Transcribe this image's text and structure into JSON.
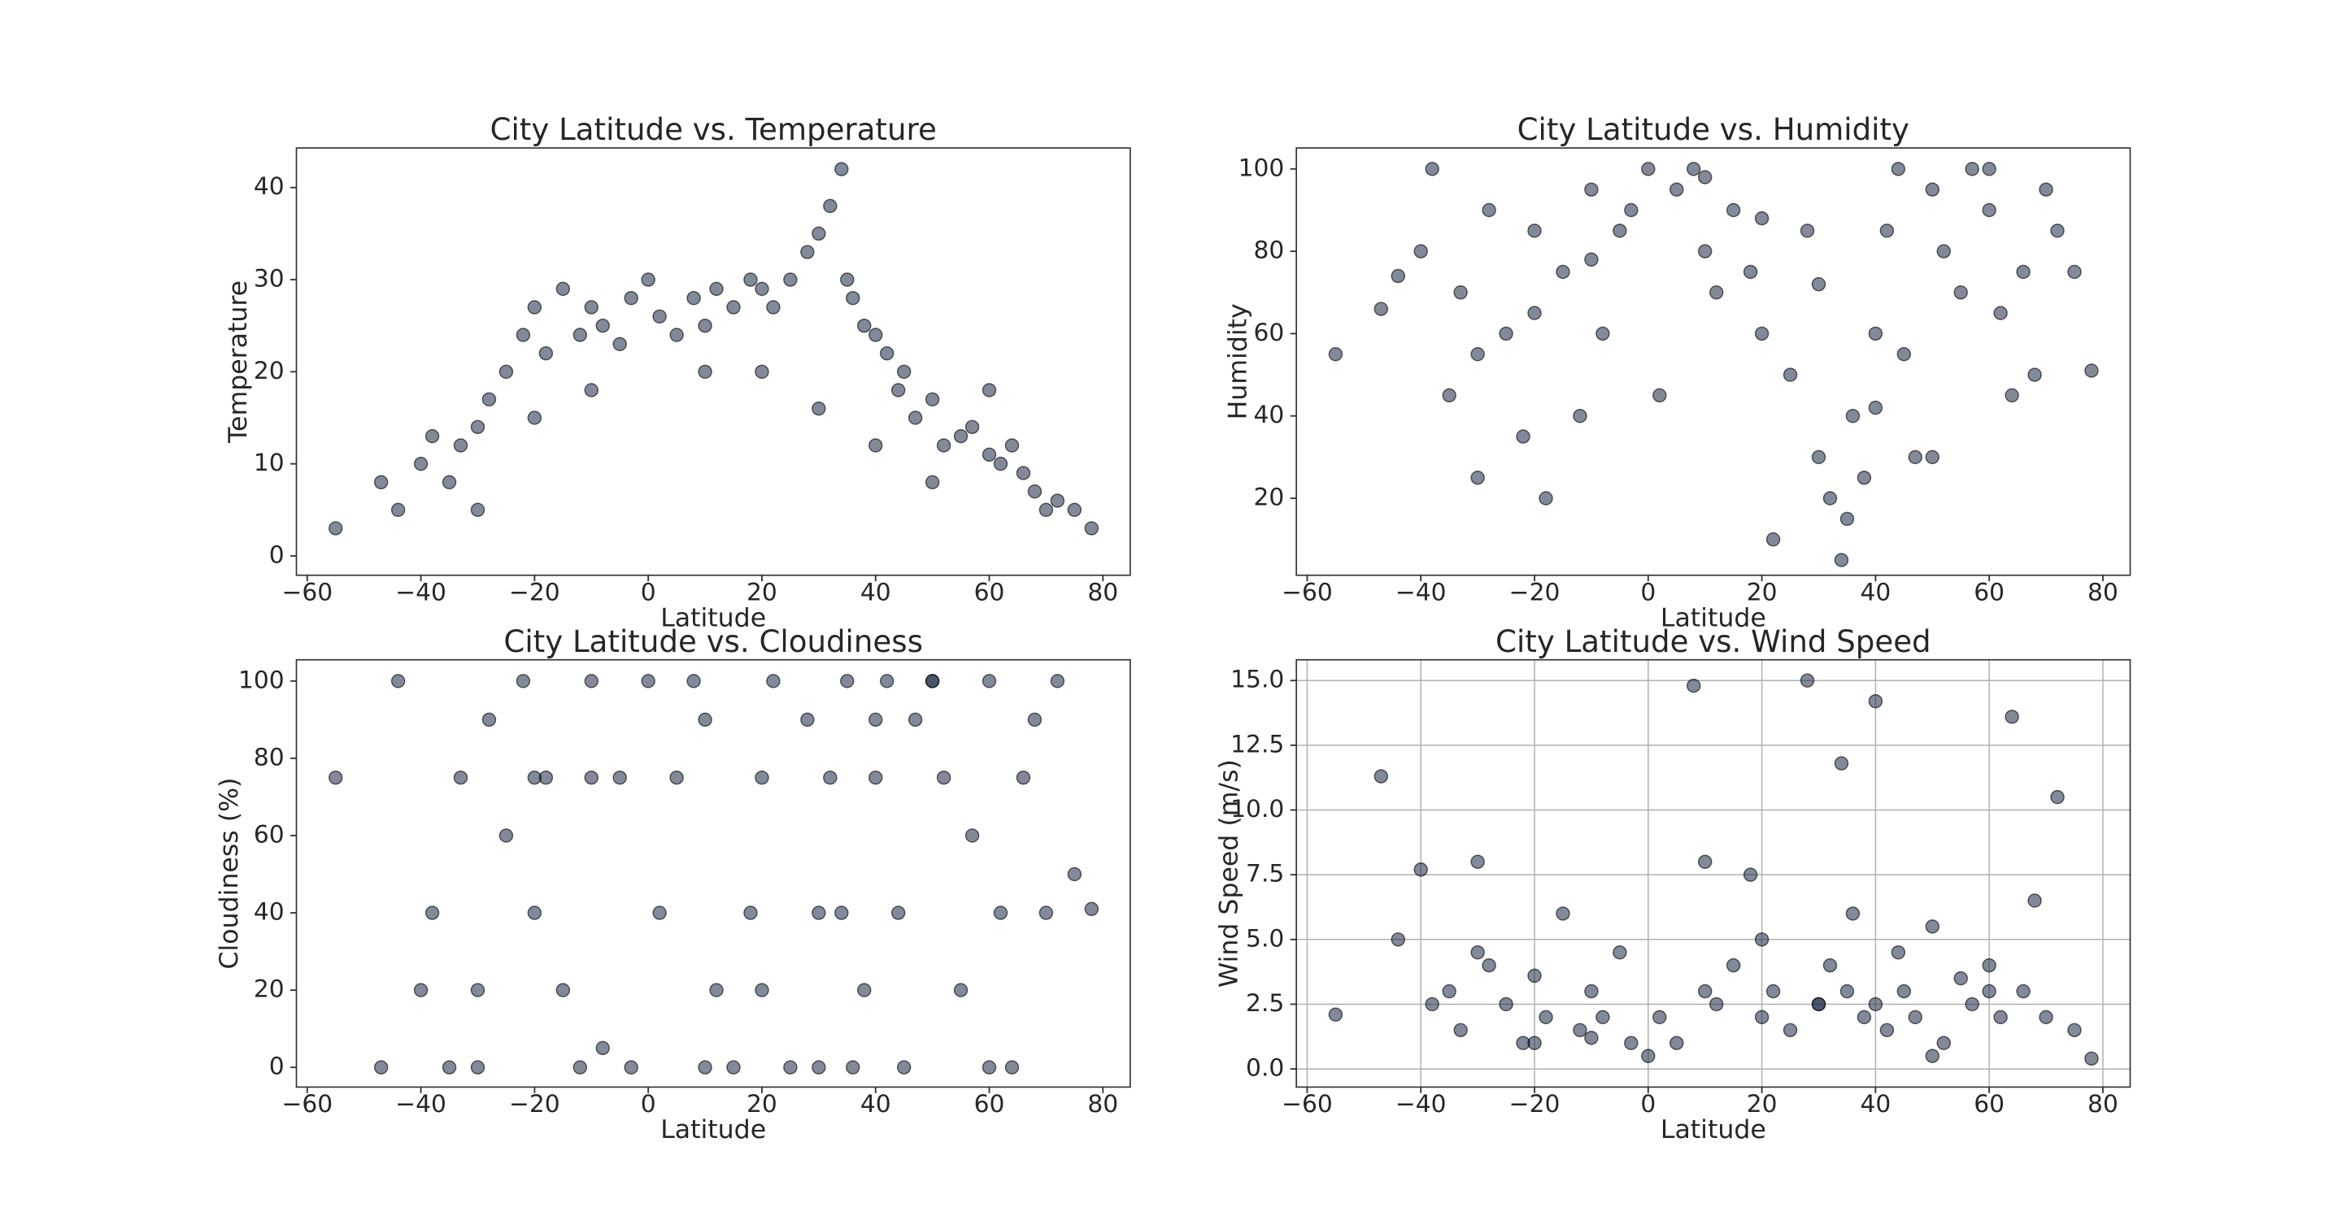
{
  "chart_data": [
    {
      "type": "scatter",
      "title": "City Latitude vs. Temperature",
      "x_label": "Latitude",
      "y_label": "Temperature",
      "color": "#1b2a47",
      "x": [
        -55,
        -47,
        -44,
        -40,
        -38,
        -35,
        -33,
        -30,
        -28,
        -25,
        -22,
        -20,
        -18,
        -15,
        -12,
        -10,
        -8,
        -5,
        -3,
        0,
        2,
        5,
        8,
        10,
        12,
        15,
        18,
        20,
        22,
        25,
        28,
        30,
        32,
        34,
        35,
        36,
        38,
        40,
        42,
        44,
        45,
        47,
        50,
        52,
        55,
        57,
        60,
        62,
        64,
        66,
        68,
        70,
        72,
        75,
        78,
        -30,
        -20,
        10,
        30,
        50,
        60,
        -10,
        20,
        40
      ],
      "y": [
        3,
        8,
        5,
        10,
        13,
        8,
        12,
        5,
        17,
        20,
        24,
        27,
        22,
        29,
        24,
        27,
        25,
        23,
        28,
        30,
        26,
        24,
        28,
        25,
        29,
        27,
        30,
        29,
        27,
        30,
        33,
        35,
        38,
        42,
        30,
        28,
        25,
        24,
        22,
        18,
        20,
        15,
        17,
        12,
        13,
        14,
        11,
        10,
        12,
        9,
        7,
        5,
        6,
        5,
        3,
        14,
        15,
        20,
        16,
        8,
        18,
        18,
        20,
        12
      ],
      "xlim": [
        -61.9,
        84.8
      ],
      "ylim": [
        -2.1,
        44.3
      ],
      "xticks": [
        {
          "value": -60,
          "label": "−60"
        },
        {
          "value": -40,
          "label": "−40"
        },
        {
          "value": -20,
          "label": "−20"
        },
        0,
        20,
        40,
        60,
        80
      ],
      "yticks": [
        0,
        10,
        20,
        30,
        40
      ],
      "grid": false
    },
    {
      "type": "scatter",
      "title": "City Latitude vs. Humidity",
      "x_label": "Latitude",
      "y_label": "Humidity",
      "color": "#1b2a47",
      "x": [
        -55,
        -47,
        -44,
        -40,
        -38,
        -35,
        -33,
        -30,
        -28,
        -25,
        -22,
        -20,
        -18,
        -15,
        -12,
        -10,
        -8,
        -5,
        -3,
        0,
        2,
        5,
        8,
        10,
        12,
        15,
        18,
        20,
        22,
        25,
        28,
        30,
        32,
        34,
        35,
        36,
        38,
        40,
        42,
        44,
        45,
        47,
        50,
        52,
        55,
        57,
        60,
        62,
        64,
        66,
        68,
        70,
        72,
        75,
        78,
        -30,
        -20,
        10,
        30,
        50,
        60,
        -10,
        20,
        40
      ],
      "y": [
        55,
        66,
        74,
        80,
        100,
        45,
        70,
        25,
        90,
        60,
        35,
        85,
        20,
        75,
        40,
        95,
        60,
        85,
        90,
        100,
        45,
        95,
        100,
        80,
        70,
        90,
        75,
        60,
        10,
        50,
        85,
        30,
        20,
        5,
        15,
        40,
        25,
        60,
        85,
        100,
        55,
        30,
        95,
        80,
        70,
        100,
        90,
        65,
        45,
        75,
        50,
        95,
        85,
        75,
        51,
        55,
        65,
        98,
        72,
        30,
        100,
        78,
        88,
        42
      ],
      "xlim": [
        -61.9,
        84.8
      ],
      "ylim": [
        1.3,
        105.1
      ],
      "xticks": [
        {
          "value": -60,
          "label": "−60"
        },
        {
          "value": -40,
          "label": "−40"
        },
        {
          "value": -20,
          "label": "−20"
        },
        0,
        20,
        40,
        60,
        80
      ],
      "yticks": [
        20,
        40,
        60,
        80,
        100
      ],
      "grid": false
    },
    {
      "type": "scatter",
      "title": "City Latitude vs. Cloudiness",
      "x_label": "Latitude",
      "y_label": "Cloudiness (%)",
      "color": "#1b2a47",
      "x": [
        -55,
        -47,
        -44,
        -40,
        -38,
        -35,
        -33,
        -30,
        -28,
        -25,
        -22,
        -20,
        -18,
        -15,
        -12,
        -10,
        -8,
        -5,
        -3,
        0,
        2,
        5,
        8,
        10,
        12,
        15,
        18,
        20,
        22,
        25,
        28,
        30,
        32,
        34,
        35,
        36,
        38,
        40,
        42,
        44,
        45,
        47,
        50,
        52,
        55,
        57,
        60,
        62,
        64,
        66,
        68,
        70,
        72,
        75,
        78,
        -30,
        -20,
        10,
        30,
        50,
        60,
        -10,
        20,
        40
      ],
      "y": [
        75,
        0,
        100,
        20,
        40,
        0,
        75,
        0,
        90,
        60,
        100,
        40,
        75,
        20,
        0,
        100,
        5,
        75,
        0,
        100,
        40,
        75,
        100,
        90,
        20,
        0,
        40,
        75,
        100,
        0,
        90,
        0,
        75,
        40,
        100,
        0,
        20,
        75,
        100,
        40,
        0,
        90,
        100,
        75,
        20,
        60,
        100,
        40,
        0,
        75,
        90,
        40,
        100,
        50,
        41,
        20,
        75,
        0,
        40,
        100,
        0,
        75,
        20,
        90
      ],
      "xlim": [
        -61.9,
        84.8
      ],
      "ylim": [
        -5.1,
        105.5
      ],
      "xticks": [
        {
          "value": -60,
          "label": "−60"
        },
        {
          "value": -40,
          "label": "−40"
        },
        {
          "value": -20,
          "label": "−20"
        },
        0,
        20,
        40,
        60,
        80
      ],
      "yticks": [
        0,
        20,
        40,
        60,
        80,
        100
      ],
      "grid": false
    },
    {
      "type": "scatter",
      "title": "City Latitude vs. Wind Speed",
      "x_label": "Latitude",
      "y_label": "Wind Speed (m/s)",
      "color": "#1b2a47",
      "x": [
        -55,
        -47,
        -44,
        -40,
        -38,
        -35,
        -33,
        -30,
        -28,
        -25,
        -22,
        -20,
        -18,
        -15,
        -12,
        -10,
        -8,
        -5,
        -3,
        0,
        2,
        5,
        8,
        10,
        12,
        15,
        18,
        20,
        22,
        25,
        28,
        30,
        32,
        34,
        35,
        36,
        38,
        40,
        42,
        44,
        45,
        47,
        50,
        52,
        55,
        57,
        60,
        62,
        64,
        66,
        68,
        70,
        72,
        75,
        78,
        -30,
        -20,
        10,
        30,
        50,
        60,
        -10,
        20,
        40
      ],
      "y": [
        2.1,
        11.3,
        5.0,
        7.7,
        2.5,
        3.0,
        1.5,
        8.0,
        4.0,
        2.5,
        1.0,
        3.6,
        2.0,
        6.0,
        1.5,
        3.0,
        2.0,
        4.5,
        1.0,
        0.5,
        2.0,
        1.0,
        14.8,
        3.0,
        2.5,
        4.0,
        7.5,
        2.0,
        3.0,
        1.5,
        15.0,
        2.5,
        4.0,
        11.8,
        3.0,
        6.0,
        2.0,
        14.2,
        1.5,
        4.5,
        3.0,
        2.0,
        5.5,
        1.0,
        3.5,
        2.5,
        4.0,
        2.0,
        13.6,
        3.0,
        6.5,
        2.0,
        10.5,
        1.5,
        0.4,
        4.5,
        1.0,
        8.0,
        2.5,
        0.5,
        3.0,
        1.2,
        5.0,
        2.5
      ],
      "xlim": [
        -61.9,
        84.8
      ],
      "ylim": [
        -0.7,
        15.8
      ],
      "xticks": [
        {
          "value": -60,
          "label": "−60"
        },
        {
          "value": -40,
          "label": "−40"
        },
        {
          "value": -20,
          "label": "−20"
        },
        0,
        20,
        40,
        60,
        80
      ],
      "yticks": [
        {
          "value": 0,
          "label": "0.0"
        },
        {
          "value": 2.5,
          "label": "2.5"
        },
        {
          "value": 5,
          "label": "5.0"
        },
        {
          "value": 7.5,
          "label": "7.5"
        },
        {
          "value": 10,
          "label": "10.0"
        },
        {
          "value": 12.5,
          "label": "12.5"
        },
        {
          "value": 15,
          "label": "15.0"
        }
      ],
      "grid": true
    }
  ]
}
